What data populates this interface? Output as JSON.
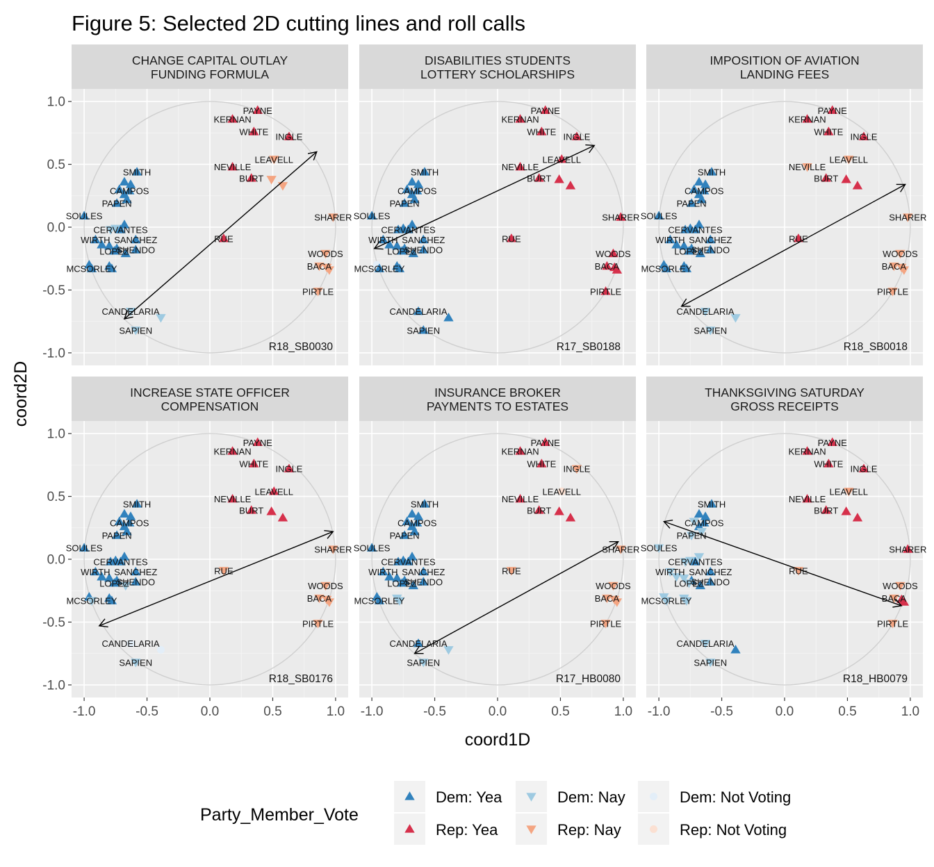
{
  "title": "Figure 5: Selected 2D cutting lines and roll calls",
  "chart_data": {
    "type": "scatter",
    "title": "Figure 5: Selected 2D cutting lines and roll calls",
    "xlabel": "coord1D",
    "ylabel": "coord2D",
    "xlim": [
      -1.1,
      1.1
    ],
    "ylim": [
      -1.1,
      1.1
    ],
    "x_ticks": [
      "-1.0",
      "-0.5",
      "0.0",
      "0.5",
      "1.0"
    ],
    "y_ticks": [
      "1.0",
      "0.5",
      "0.0",
      "-0.5",
      "-1.0"
    ],
    "grid": true,
    "unit_circle": true,
    "legend": {
      "title": "Party_Member_Vote",
      "position": "bottom",
      "entries": [
        {
          "key": "DY",
          "label": "Dem: Yea",
          "color": "#3182bd",
          "shape": "triangle-up"
        },
        {
          "key": "RY",
          "label": "Rep: Yea",
          "color": "#d6304b",
          "shape": "triangle-up"
        },
        {
          "key": "DN",
          "label": "Dem: Nay",
          "color": "#9ecae1",
          "shape": "triangle-down"
        },
        {
          "key": "RN",
          "label": "Rep: Nay",
          "color": "#f4a582",
          "shape": "triangle-down"
        },
        {
          "key": "DV",
          "label": "Dem: Not Voting",
          "color": "#e3eef8",
          "shape": "circle"
        },
        {
          "key": "RV",
          "label": "Rep: Not Voting",
          "color": "#fbe0d2",
          "shape": "circle"
        }
      ]
    },
    "legislators": [
      {
        "name": "PAYNE",
        "party": "R",
        "x": 0.38,
        "y": 0.93,
        "label": true
      },
      {
        "name": "KERNAN",
        "party": "R",
        "x": 0.18,
        "y": 0.86,
        "label": true
      },
      {
        "name": "WHITE",
        "party": "R",
        "x": 0.35,
        "y": 0.76,
        "label": true
      },
      {
        "name": "INGLE",
        "party": "R",
        "x": 0.63,
        "y": 0.72,
        "label": true
      },
      {
        "name": "LEAVELL",
        "party": "R",
        "x": 0.51,
        "y": 0.54,
        "label": true
      },
      {
        "name": "NEVILLE",
        "party": "R",
        "x": 0.18,
        "y": 0.48,
        "label": true
      },
      {
        "name": "BURT",
        "party": "R",
        "x": 0.33,
        "y": 0.39,
        "label": true
      },
      {
        "name": "R_BURT2",
        "party": "R",
        "x": 0.49,
        "y": 0.38,
        "label": false
      },
      {
        "name": "R_BURT3",
        "party": "R",
        "x": 0.58,
        "y": 0.33,
        "label": false
      },
      {
        "name": "SHARER",
        "party": "R",
        "x": 0.98,
        "y": 0.08,
        "label": true
      },
      {
        "name": "RUE",
        "party": "R",
        "x": 0.11,
        "y": -0.09,
        "label": true
      },
      {
        "name": "WOODS",
        "party": "R",
        "x": 0.92,
        "y": -0.21,
        "label": true
      },
      {
        "name": "BACA",
        "party": "R",
        "x": 0.87,
        "y": -0.31,
        "label": true
      },
      {
        "name": "R_BACA2",
        "party": "R",
        "x": 0.93,
        "y": -0.32,
        "label": false
      },
      {
        "name": "R_BACA3",
        "party": "R",
        "x": 0.95,
        "y": -0.34,
        "label": false
      },
      {
        "name": "PIRTLE",
        "party": "R",
        "x": 0.86,
        "y": -0.51,
        "label": true
      },
      {
        "name": "SMITH",
        "party": "D",
        "x": -0.58,
        "y": 0.44,
        "label": true
      },
      {
        "name": "D_SM2",
        "party": "D",
        "x": -0.68,
        "y": 0.36,
        "label": false
      },
      {
        "name": "D_SM3",
        "party": "D",
        "x": -0.63,
        "y": 0.34,
        "label": false
      },
      {
        "name": "CAMPOS",
        "party": "D",
        "x": -0.64,
        "y": 0.29,
        "label": true
      },
      {
        "name": "D_CA2",
        "party": "D",
        "x": -0.68,
        "y": 0.26,
        "label": false
      },
      {
        "name": "D_CA3",
        "party": "D",
        "x": -0.72,
        "y": 0.3,
        "label": false
      },
      {
        "name": "PAPEN",
        "party": "D",
        "x": -0.74,
        "y": 0.19,
        "label": true
      },
      {
        "name": "D_PA2",
        "party": "D",
        "x": -0.66,
        "y": 0.22,
        "label": false
      },
      {
        "name": "SOULES",
        "party": "D",
        "x": -1.0,
        "y": 0.09,
        "label": true
      },
      {
        "name": "D_CE1",
        "party": "D",
        "x": -0.68,
        "y": 0.02,
        "label": false
      },
      {
        "name": "D_CE2",
        "party": "D",
        "x": -0.75,
        "y": -0.01,
        "label": false
      },
      {
        "name": "D_CE3",
        "party": "D",
        "x": -0.79,
        "y": -0.02,
        "label": false
      },
      {
        "name": "CERVANTES",
        "party": "D",
        "x": -0.71,
        "y": -0.02,
        "label": true
      },
      {
        "name": "WIRTH",
        "party": "D",
        "x": -0.91,
        "y": -0.1,
        "label": true
      },
      {
        "name": "SANCHEZ",
        "party": "D",
        "x": -0.59,
        "y": -0.1,
        "label": true
      },
      {
        "name": "D_LO1",
        "party": "D",
        "x": -0.86,
        "y": -0.14,
        "label": false
      },
      {
        "name": "D_LO2",
        "party": "D",
        "x": -0.8,
        "y": -0.15,
        "label": false
      },
      {
        "name": "D_LO3",
        "party": "D",
        "x": -0.74,
        "y": -0.17,
        "label": false
      },
      {
        "name": "LOPEZ",
        "party": "D",
        "x": -0.76,
        "y": -0.19,
        "label": true
      },
      {
        "name": "SHENDO",
        "party": "D",
        "x": -0.59,
        "y": -0.18,
        "label": true
      },
      {
        "name": "D_LO4",
        "party": "D",
        "x": -0.67,
        "y": -0.21,
        "label": false
      },
      {
        "name": "D_MC1",
        "party": "D",
        "x": -0.96,
        "y": -0.3,
        "label": false
      },
      {
        "name": "MCSORLEY",
        "party": "D",
        "x": -0.94,
        "y": -0.33,
        "label": true
      },
      {
        "name": "D_MC2",
        "party": "D",
        "x": -0.8,
        "y": -0.31,
        "label": false
      },
      {
        "name": "D_MC3",
        "party": "D",
        "x": -0.78,
        "y": -0.33,
        "label": false
      },
      {
        "name": "CANDELARIA",
        "party": "D",
        "x": -0.63,
        "y": -0.67,
        "label": true
      },
      {
        "name": "D_CN2",
        "party": "D",
        "x": -0.39,
        "y": -0.72,
        "label": false
      },
      {
        "name": "SAPIEN",
        "party": "D",
        "x": -0.59,
        "y": -0.82,
        "label": true
      }
    ],
    "panels": [
      {
        "title_lines": [
          "CHANGE CAPITAL OUTLAY",
          "FUNDING FORMULA"
        ],
        "rollcall": "R18_SB0030",
        "cut_line": {
          "x1": -0.68,
          "y1": -0.73,
          "x2": 0.85,
          "y2": 0.6
        },
        "votes": {
          "default": {
            "D": "DY",
            "R": "RY"
          },
          "overrides": {
            "SHARER": "RN",
            "WOODS": "RN",
            "BACA": "RN",
            "R_BACA2": "RN",
            "R_BACA3": "RN",
            "PIRTLE": "RN",
            "LEAVELL": "RN",
            "R_BURT2": "RN",
            "R_BURT3": "RN",
            "D_CE3": "DN",
            "D_CE2": "DN",
            "CANDELARIA": "DN",
            "D_CN2": "DN",
            "SAPIEN": "DN"
          }
        }
      },
      {
        "title_lines": [
          "DISABILITIES STUDENTS",
          "LOTTERY SCHOLARSHIPS"
        ],
        "rollcall": "R17_SB0188",
        "cut_line": {
          "x1": -0.98,
          "y1": -0.17,
          "x2": 0.77,
          "y2": 0.65
        },
        "votes": {
          "default": {
            "D": "DY",
            "R": "RY"
          },
          "overrides": {
            "D_MC1": "DV"
          }
        }
      },
      {
        "title_lines": [
          "IMPOSITION OF AVIATION",
          "LANDING FEES"
        ],
        "rollcall": "R18_SB0018",
        "cut_line": {
          "x1": -0.82,
          "y1": -0.63,
          "x2": 0.96,
          "y2": 0.34
        },
        "votes": {
          "default": {
            "D": "DY",
            "R": "RY"
          },
          "overrides": {
            "SHARER": "RN",
            "WOODS": "RN",
            "BACA": "RN",
            "R_BACA2": "RN",
            "R_BACA3": "RN",
            "PIRTLE": "RN",
            "LEAVELL": "RN",
            "NEVILLE": "RN",
            "CANDELARIA": "DN",
            "D_CN2": "DN",
            "SAPIEN": "DN"
          }
        }
      },
      {
        "title_lines": [
          "INCREASE STATE OFFICER",
          "COMPENSATION"
        ],
        "rollcall": "R18_SB0176",
        "cut_line": {
          "x1": -0.88,
          "y1": -0.53,
          "x2": 0.98,
          "y2": 0.22
        },
        "votes": {
          "default": {
            "D": "DY",
            "R": "RY"
          },
          "overrides": {
            "SHARER": "RN",
            "WOODS": "RN",
            "BACA": "RN",
            "R_BACA2": "RN",
            "R_BACA3": "RN",
            "PIRTLE": "RN",
            "RUE": "RN",
            "MCSORLEY": "DN",
            "D_LO4": "DN",
            "CANDELARIA": "DV",
            "D_CN2": "DV",
            "SAPIEN": "DN"
          }
        }
      },
      {
        "title_lines": [
          "INSURANCE BROKER",
          "PAYMENTS TO ESTATES"
        ],
        "rollcall": "R17_HB0080",
        "cut_line": {
          "x1": -0.66,
          "y1": -0.75,
          "x2": 0.96,
          "y2": 0.14
        },
        "votes": {
          "default": {
            "D": "DY",
            "R": "RY"
          },
          "overrides": {
            "SHARER": "RN",
            "WOODS": "RN",
            "BACA": "RN",
            "R_BACA2": "RN",
            "R_BACA3": "RN",
            "PIRTLE": "RN",
            "INGLE": "RN",
            "RUE": "RN",
            "LEAVELL": "RV",
            "D_MC2": "DN",
            "D_MC3": "DN",
            "D_CN2": "DN",
            "SAPIEN": "DN"
          }
        }
      },
      {
        "title_lines": [
          "THANKSGIVING SATURDAY",
          "GROSS RECEIPTS"
        ],
        "rollcall": "R18_HB0079",
        "cut_line": {
          "x1": -0.96,
          "y1": 0.3,
          "x2": 0.93,
          "y2": -0.37
        },
        "votes": {
          "default": {
            "D": "DY",
            "R": "RY"
          },
          "overrides": {
            "SOULES": "DN",
            "WIRTH": "DN",
            "MCSORLEY": "DN",
            "D_MC1": "DN",
            "D_MC2": "DN",
            "D_MC3": "DN",
            "D_LO1": "DN",
            "D_LO2": "DN",
            "LOPEZ": "DN",
            "D_CE1": "DN",
            "D_CE2": "DN",
            "D_CE3": "DN",
            "PAPEN": "DN",
            "D_PA2": "DN",
            "D_CA3": "DN",
            "CANDELARIA": "DN",
            "SAPIEN": "DN",
            "LEAVELL": "RN",
            "NEVILLE": "RY",
            "RUE": "RN",
            "WOODS": "RN",
            "BACA": "RN",
            "PIRTLE": "RN"
          }
        }
      }
    ]
  }
}
